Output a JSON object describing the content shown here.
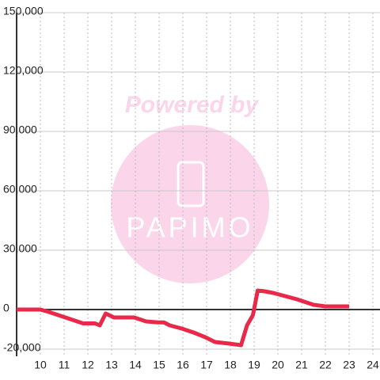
{
  "chart_data": {
    "type": "line",
    "watermark": {
      "top": "Powered by",
      "bottom": "PAPIMO"
    },
    "x": [
      9,
      10,
      10.3,
      10.8,
      11.3,
      11.8,
      12.3,
      12.5,
      12.75,
      13.1,
      13.95,
      14.45,
      14.95,
      15.2,
      15.45,
      15.95,
      16.45,
      16.95,
      17.35,
      17.95,
      18.45,
      18.7,
      18.95,
      19.15,
      19.45,
      19.8,
      20.3,
      20.8,
      21.1,
      21.5,
      22,
      23
    ],
    "series": [
      {
        "color": "#e8294a",
        "values": [
          0,
          0,
          -1000,
          -3000,
          -5000,
          -7000,
          -7000,
          -8000,
          -2000,
          -4000,
          -4000,
          -6000,
          -6500,
          -6500,
          -8000,
          -9600,
          -11600,
          -14000,
          -16400,
          -17200,
          -18000,
          -8000,
          -2800,
          9600,
          9200,
          8400,
          6800,
          5200,
          4000,
          2400,
          1600,
          1600
        ]
      }
    ],
    "xlim": [
      9,
      24.3
    ],
    "ylim": [
      -23600,
      150000
    ],
    "xticks": [
      10,
      11,
      12,
      13,
      14,
      15,
      16,
      17,
      18,
      19,
      20,
      21,
      22,
      23,
      24
    ],
    "yticks": [
      {
        "value": -20000,
        "label": "-20,000"
      },
      0,
      {
        "value": 30000,
        "label": "30,000"
      },
      {
        "value": 60000,
        "label": "60,000"
      },
      {
        "value": 90000,
        "label": "90,000"
      },
      {
        "value": 120000,
        "label": "120,000"
      },
      {
        "value": 150000,
        "label": "150,000"
      }
    ],
    "grid": true
  }
}
